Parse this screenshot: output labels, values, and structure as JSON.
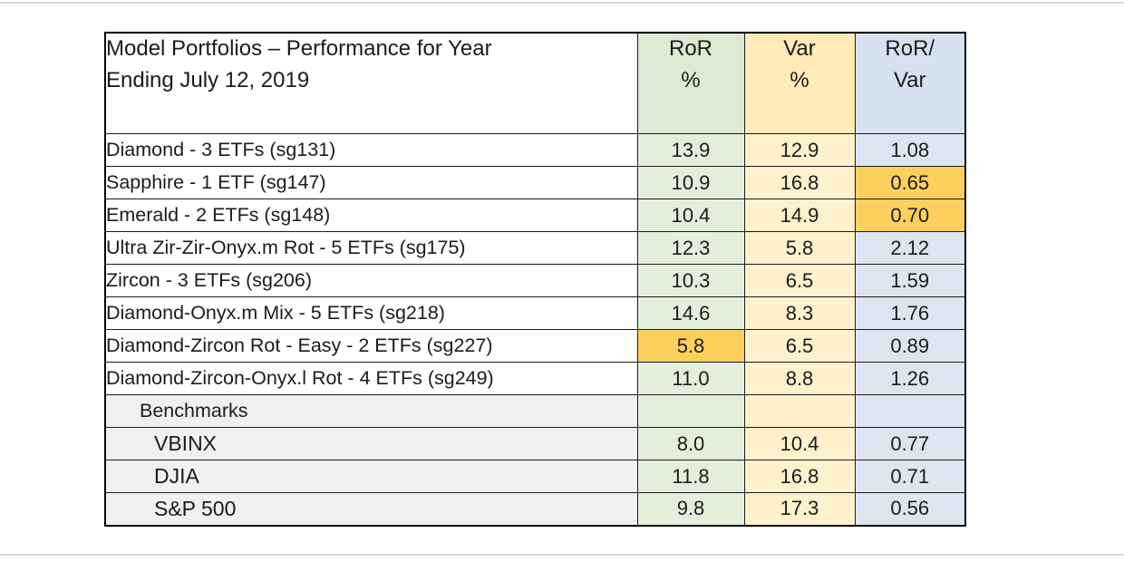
{
  "table": {
    "title_line1": "Model Portfolios – Performance for Year",
    "title_line2": "Ending July 12, 2019",
    "columns": [
      {
        "line1": "RoR",
        "line2": "%"
      },
      {
        "line1": "Var",
        "line2": "%"
      },
      {
        "line1": "RoR/",
        "line2": "Var"
      }
    ],
    "rows": [
      {
        "type": "portfolio",
        "label": "Diamond - 3 ETFs (sg131)",
        "ror": "13.9",
        "var": "12.9",
        "ratio": "1.08",
        "hl": null
      },
      {
        "type": "portfolio",
        "label": "Sapphire - 1 ETF (sg147)",
        "ror": "10.9",
        "var": "16.8",
        "ratio": "0.65",
        "hl": "ratio"
      },
      {
        "type": "portfolio",
        "label": "Emerald - 2 ETFs (sg148)",
        "ror": "10.4",
        "var": "14.9",
        "ratio": "0.70",
        "hl": "ratio"
      },
      {
        "type": "portfolio",
        "label": "Ultra Zir-Zir-Onyx.m Rot - 5 ETFs (sg175)",
        "ror": "12.3",
        "var": "5.8",
        "ratio": "2.12",
        "hl": null
      },
      {
        "type": "portfolio",
        "label": "Zircon - 3 ETFs (sg206)",
        "ror": "10.3",
        "var": "6.5",
        "ratio": "1.59",
        "hl": null
      },
      {
        "type": "portfolio",
        "label": "Diamond-Onyx.m Mix - 5 ETFs (sg218)",
        "ror": "14.6",
        "var": "8.3",
        "ratio": "1.76",
        "hl": null
      },
      {
        "type": "portfolio",
        "label": "Diamond-Zircon Rot - Easy - 2 ETFs (sg227)",
        "ror": "5.8",
        "var": "6.5",
        "ratio": "0.89",
        "hl": "ror"
      },
      {
        "type": "portfolio",
        "label": "Diamond-Zircon-Onyx.l Rot - 4 ETFs (sg249)",
        "ror": "11.0",
        "var": "8.8",
        "ratio": "1.26",
        "hl": null
      },
      {
        "type": "section",
        "label": "Benchmarks",
        "ror": "",
        "var": "",
        "ratio": "",
        "hl": null
      },
      {
        "type": "benchmark",
        "label": "VBINX",
        "ror": "8.0",
        "var": "10.4",
        "ratio": "0.77",
        "hl": null
      },
      {
        "type": "benchmark",
        "label": "DJIA",
        "ror": "11.8",
        "var": "16.8",
        "ratio": "0.71",
        "hl": null
      },
      {
        "type": "benchmark",
        "label": "S&P 500",
        "ror": "9.8",
        "var": "17.3",
        "ratio": "0.56",
        "hl": null
      }
    ]
  },
  "colors": {
    "header_green": "#dcead3",
    "header_yellow": "#ffeab8",
    "header_blue": "#d7e2f0",
    "cell_green": "#e3efdb",
    "cell_yellow": "#fff1cb",
    "cell_blue": "#dce6f1",
    "highlight_gold": "#fbd05c",
    "section_gray": "#f0f0f0",
    "border_black": "#1c1c1c",
    "page_divider_gray": "#d9d9d9"
  }
}
